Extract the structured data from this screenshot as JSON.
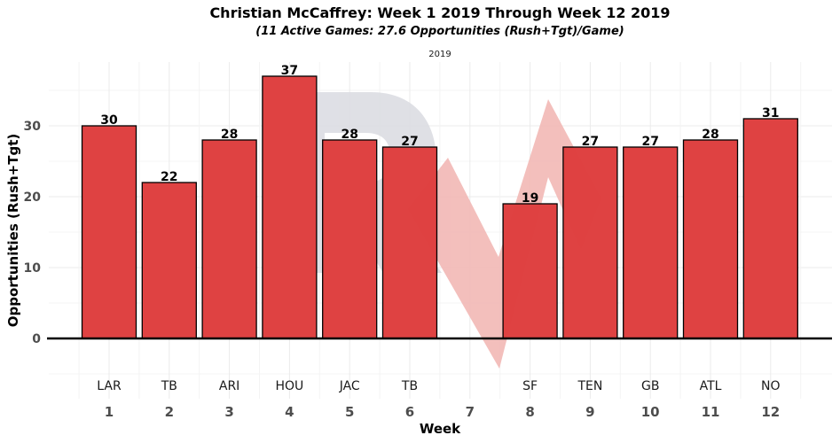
{
  "header": {
    "title": "Christian McCaffrey: Week 1 2019 Through Week 12 2019",
    "subtitle": "(11 Active Games: 27.6 Opportunities (Rush+Tgt)/Game)",
    "facet": "2019"
  },
  "colors": {
    "bar": "#de3e3e",
    "bar_stroke": "#000000",
    "watermark_gray": "#dcdde3",
    "watermark_red": "#f2b8b5"
  },
  "chart_data": {
    "type": "bar",
    "title": "Christian McCaffrey: Week 1 2019 Through Week 12 2019",
    "subtitle": "(11 Active Games: 27.6 Opportunities (Rush+Tgt)/Game)",
    "xlabel": "Week",
    "ylabel": "Opportunities (Rush+Tgt)",
    "ylim": [
      -8.5,
      39
    ],
    "yticks": [
      0,
      10,
      20,
      30
    ],
    "grid": true,
    "weeks": [
      "1",
      "2",
      "3",
      "4",
      "5",
      "6",
      "7",
      "8",
      "9",
      "10",
      "11",
      "12"
    ],
    "opponents": [
      "LAR",
      "TB",
      "ARI",
      "HOU",
      "JAC",
      "TB",
      "",
      "SF",
      "TEN",
      "GB",
      "ATL",
      "NO"
    ],
    "values": [
      30,
      22,
      28,
      37,
      28,
      27,
      null,
      19,
      27,
      27,
      28,
      31
    ]
  }
}
